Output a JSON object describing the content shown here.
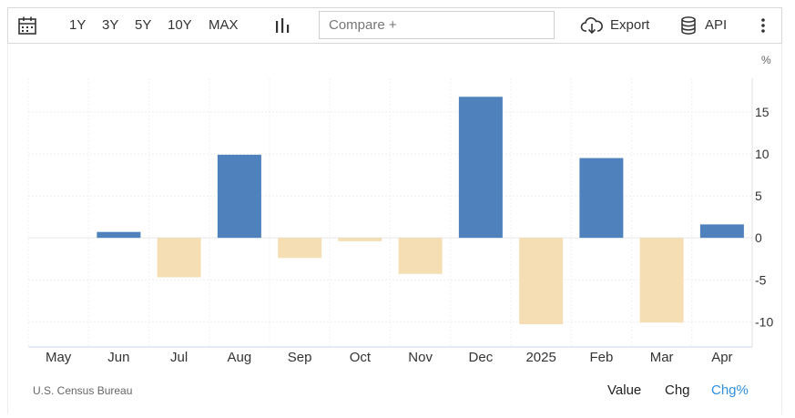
{
  "toolbar": {
    "ranges": [
      "1Y",
      "3Y",
      "5Y",
      "10Y",
      "MAX"
    ],
    "compare_placeholder": "Compare +",
    "export_label": "Export",
    "api_label": "API"
  },
  "unit_label": "%",
  "source": "U.S. Census Bureau",
  "view_toggle": {
    "value": "Value",
    "chg": "Chg",
    "chgpct": "Chg%",
    "active": "chgpct"
  },
  "colors": {
    "positive": "#4f81bd",
    "negative": "#f5deb3",
    "active_toggle": "#2f8fde"
  },
  "chart_data": {
    "type": "bar",
    "categories": [
      "May",
      "Jun",
      "Jul",
      "Aug",
      "Sep",
      "Oct",
      "Nov",
      "Dec",
      "2025",
      "Feb",
      "Mar",
      "Apr"
    ],
    "values": [
      0,
      0.7,
      -4.7,
      9.9,
      -2.4,
      -0.4,
      -4.3,
      16.8,
      -10.3,
      9.5,
      -10.1,
      1.6
    ],
    "ylim": [
      -13,
      19
    ],
    "yticks": [
      -10,
      -5,
      0,
      5,
      10,
      15
    ],
    "title": "",
    "xlabel": "",
    "ylabel": "",
    "grid": true
  }
}
